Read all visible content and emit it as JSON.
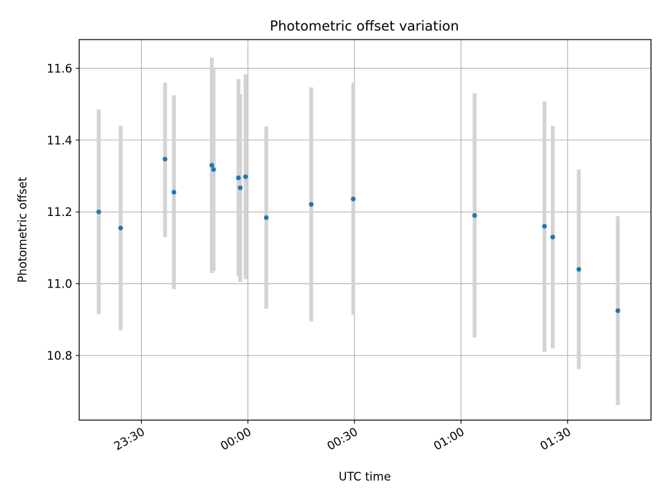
{
  "chart_data": {
    "type": "scatter",
    "title": "Photometric offset variation",
    "xlabel": "UTC time",
    "ylabel": "Photometric offset",
    "grid": true,
    "x_axis": {
      "unit": "UTC time (HH:MM)",
      "lim": [
        "23:12:30",
        "01:53:30"
      ],
      "ticks": [
        "23:30",
        "00:00",
        "00:30",
        "01:00",
        "01:30"
      ]
    },
    "y_axis": {
      "lim": [
        10.62,
        11.68
      ],
      "ticks": [
        "10.8",
        "11.0",
        "11.2",
        "11.4",
        "11.6"
      ]
    },
    "colors": {
      "points": "#1f77b4",
      "error_bars": "#d3d3d3",
      "grid": "#b0b0b0"
    },
    "points": [
      {
        "x": "23:18:00",
        "y": 11.2,
        "ylo": 10.915,
        "yhi": 11.485
      },
      {
        "x": "23:24:10",
        "y": 11.155,
        "ylo": 10.87,
        "yhi": 11.44
      },
      {
        "x": "23:36:40",
        "y": 11.347,
        "ylo": 11.13,
        "yhi": 11.56
      },
      {
        "x": "23:39:10",
        "y": 11.255,
        "ylo": 10.985,
        "yhi": 11.525
      },
      {
        "x": "23:49:50",
        "y": 11.33,
        "ylo": 11.03,
        "yhi": 11.63
      },
      {
        "x": "23:50:20",
        "y": 11.318,
        "ylo": 11.035,
        "yhi": 11.6
      },
      {
        "x": "23:57:20",
        "y": 11.295,
        "ylo": 11.02,
        "yhi": 11.57
      },
      {
        "x": "23:57:50",
        "y": 11.267,
        "ylo": 11.005,
        "yhi": 11.528
      },
      {
        "x": "23:59:20",
        "y": 11.298,
        "ylo": 11.013,
        "yhi": 11.583
      },
      {
        "x": "00:05:10",
        "y": 11.184,
        "ylo": 10.93,
        "yhi": 11.438
      },
      {
        "x": "00:17:50",
        "y": 11.221,
        "ylo": 10.895,
        "yhi": 11.547
      },
      {
        "x": "00:29:40",
        "y": 11.236,
        "ylo": 10.913,
        "yhi": 11.56
      },
      {
        "x": "01:03:50",
        "y": 11.19,
        "ylo": 10.85,
        "yhi": 11.53
      },
      {
        "x": "01:23:30",
        "y": 11.16,
        "ylo": 10.81,
        "yhi": 11.508
      },
      {
        "x": "01:25:50",
        "y": 11.13,
        "ylo": 10.82,
        "yhi": 11.44
      },
      {
        "x": "01:33:10",
        "y": 11.04,
        "ylo": 10.762,
        "yhi": 11.318
      },
      {
        "x": "01:44:10",
        "y": 10.925,
        "ylo": 10.662,
        "yhi": 11.188
      }
    ]
  }
}
